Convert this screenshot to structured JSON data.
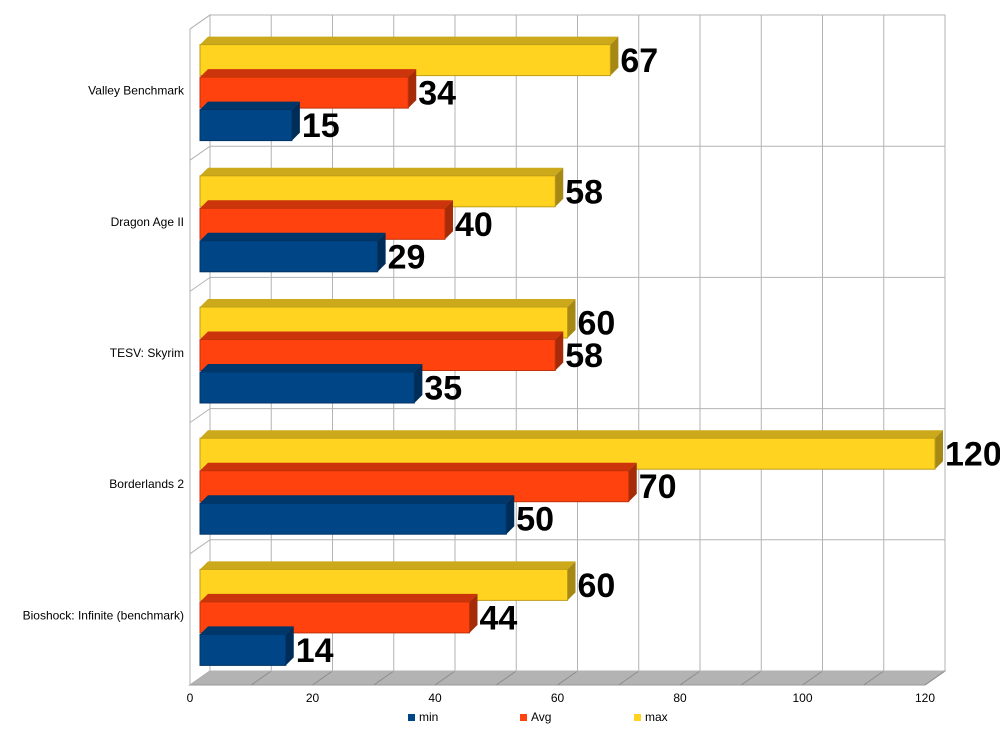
{
  "chart_data": {
    "type": "bar",
    "orientation": "horizontal",
    "style": "3d",
    "title": "",
    "xlabel": "",
    "ylabel": "",
    "categories": [
      "Bioshock: Infinite (benchmark)",
      "Borderlands 2",
      "TESV: Skyrim",
      "Dragon Age II",
      "Valley Benchmark"
    ],
    "series": [
      {
        "name": "min",
        "color": "#004586",
        "values": [
          14,
          50,
          35,
          29,
          15
        ]
      },
      {
        "name": "Avg",
        "color": "#ff420e",
        "values": [
          44,
          70,
          58,
          40,
          34
        ]
      },
      {
        "name": "max",
        "color": "#ffd320",
        "values": [
          60,
          120,
          60,
          58,
          67
        ]
      }
    ],
    "xlim": [
      0,
      120
    ],
    "xticks": [
      0,
      20,
      40,
      60,
      80,
      100,
      120
    ],
    "grid": true,
    "legend_position": "bottom",
    "data_labels": true
  }
}
